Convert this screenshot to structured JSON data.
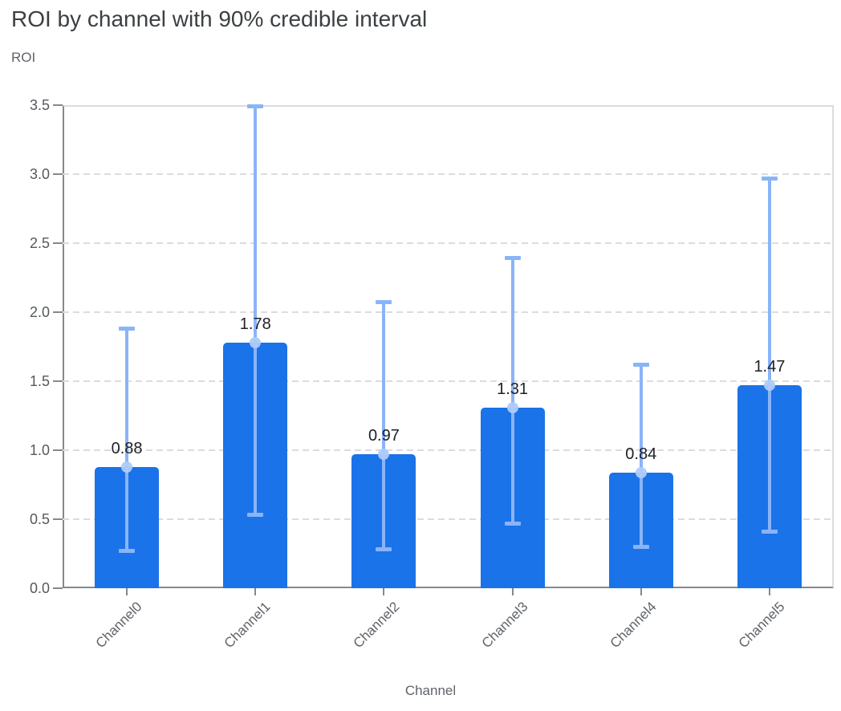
{
  "chart_data": {
    "type": "bar",
    "title": "ROI by channel with 90% credible interval",
    "ylabel": "ROI",
    "xlabel": "Channel",
    "categories": [
      "Channel0",
      "Channel1",
      "Channel2",
      "Channel3",
      "Channel4",
      "Channel5"
    ],
    "values": [
      0.88,
      1.78,
      0.97,
      1.31,
      0.84,
      1.47
    ],
    "value_labels": [
      "0.88",
      "1.78",
      "0.97",
      "1.31",
      "0.84",
      "1.47"
    ],
    "error_low": [
      0.27,
      0.53,
      0.28,
      0.47,
      0.3,
      0.41
    ],
    "error_high": [
      1.88,
      3.49,
      2.07,
      2.39,
      1.62,
      2.97
    ],
    "error_bar_meaning": "90% credible interval",
    "ylim": [
      0,
      3.5
    ],
    "ytick_labels": [
      "0.0",
      "0.5",
      "1.0",
      "1.5",
      "2.0",
      "2.5",
      "3.0",
      "3.5"
    ],
    "grid": "horizontal dashed",
    "legend": "none",
    "colors": {
      "bar": "#1A73E8",
      "error_bar": "#8AB4F8",
      "mean_marker": "#AECBFA",
      "title_text": "#3C4043",
      "axis_text": "#5F6368",
      "value_label_text": "#202124",
      "gridline": "#DADCE0",
      "axis_line": "#85898D"
    }
  }
}
